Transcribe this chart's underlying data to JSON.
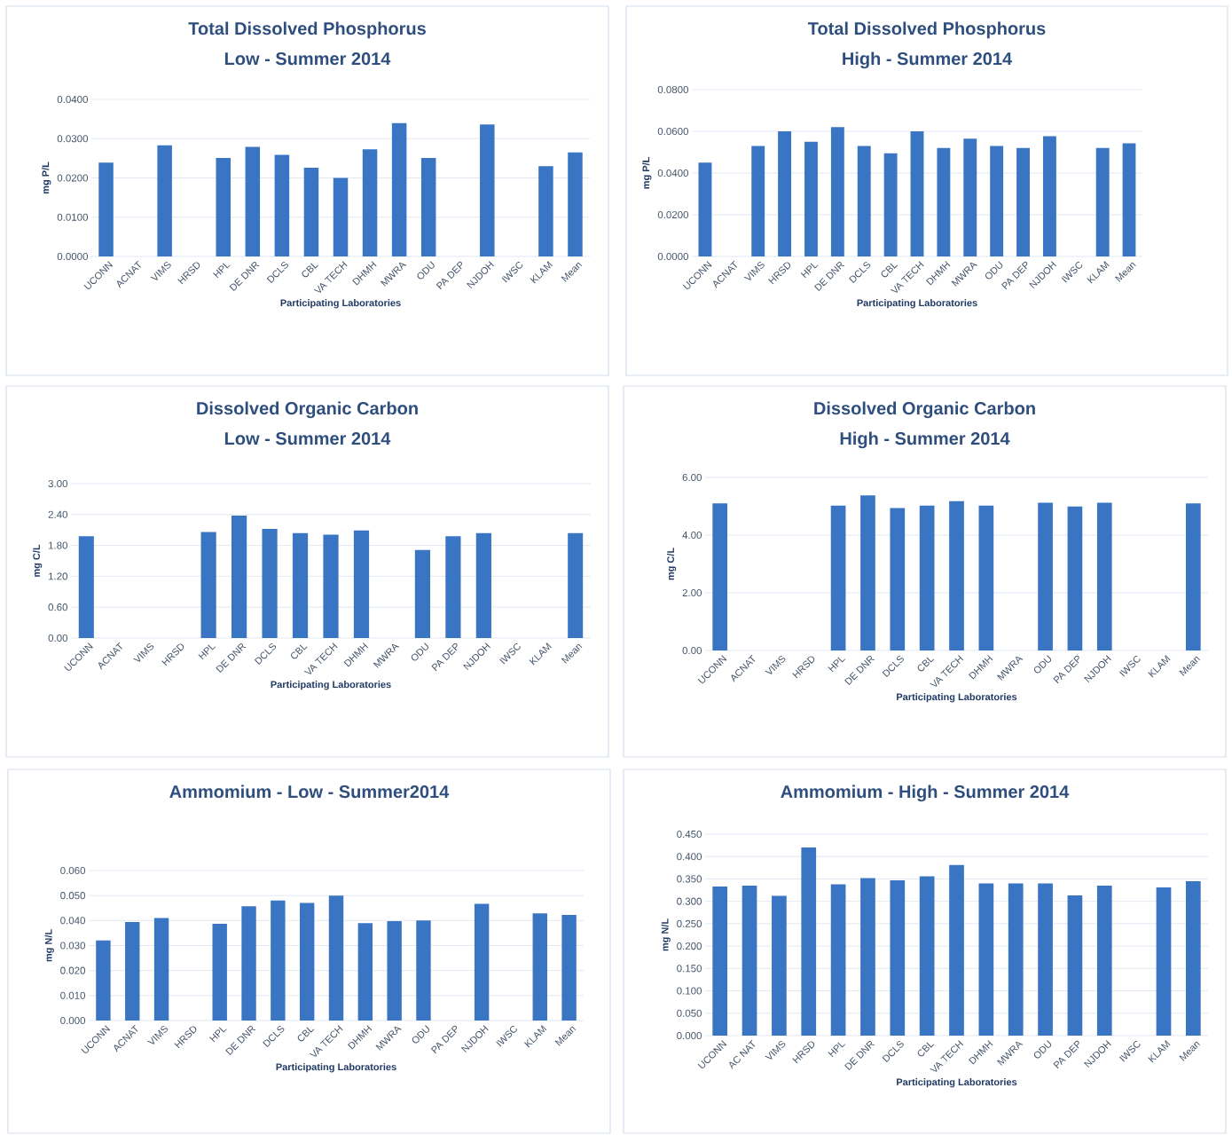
{
  "chart_data": [
    {
      "type": "bar",
      "title": "Total Dissolved Phosphorus",
      "subtitle": "Low - Summer 2014",
      "xlabel": "Participating Laboratories",
      "ylabel": "mg P/L",
      "color": "#3a75c4",
      "grid": "y",
      "categories": [
        "UCONN",
        "ACNAT",
        "VIMS",
        "HRSD",
        "HPL",
        "DE DNR",
        "DCLS",
        "CBL",
        "VA TECH",
        "DHMH",
        "MWRA",
        "ODU",
        "PA DEP",
        "NJDOH",
        "IWSC",
        "KLAM",
        "Mean"
      ],
      "values": [
        0.0239,
        null,
        0.0283,
        null,
        0.0251,
        0.0279,
        0.0259,
        0.0226,
        0.02,
        0.0273,
        0.034,
        0.0251,
        null,
        0.0336,
        null,
        0.023,
        0.0265
      ],
      "ylim": [
        0,
        0.04
      ],
      "yticks": [
        {
          "value": 0,
          "label": "0.0000"
        },
        {
          "value": 0.01,
          "label": "0.0100"
        },
        {
          "value": 0.02,
          "label": "0.0200"
        },
        {
          "value": 0.03,
          "label": "0.0300"
        },
        {
          "value": 0.04,
          "label": "0.0400"
        }
      ]
    },
    {
      "type": "bar",
      "title": "Total Dissolved Phosphorus",
      "subtitle": "High - Summer 2014",
      "xlabel": "Participating Laboratories",
      "ylabel": "mg P/L",
      "color": "#3a75c4",
      "grid": "y",
      "categories": [
        "UCONN",
        "ACNAT",
        "VIMS",
        "HRSD",
        "HPL",
        "DE DNR",
        "DCLS",
        "CBL",
        "VA TECH",
        "DHMH",
        "MWRA",
        "ODU",
        "PA DEP",
        "NJDOH",
        "IWSC",
        "KLAM",
        "Mean"
      ],
      "values": [
        0.045,
        null,
        0.053,
        0.06,
        0.055,
        0.062,
        0.053,
        0.0495,
        0.06,
        0.052,
        0.0565,
        0.053,
        0.052,
        0.0577,
        null,
        0.052,
        0.0542
      ],
      "ylim": [
        0,
        0.08
      ],
      "yticks": [
        {
          "value": 0,
          "label": "0.0000"
        },
        {
          "value": 0.02,
          "label": "0.0200"
        },
        {
          "value": 0.04,
          "label": "0.0400"
        },
        {
          "value": 0.06,
          "label": "0.0600"
        },
        {
          "value": 0.08,
          "label": "0.0800"
        }
      ]
    },
    {
      "type": "bar",
      "title": "Dissolved Organic Carbon",
      "subtitle": "Low - Summer 2014",
      "xlabel": "Participating Laboratories",
      "ylabel": "mg C/L",
      "color": "#3a75c4",
      "grid": "y",
      "categories": [
        "UCONN",
        "ACNAT",
        "VIMS",
        "HRSD",
        "HPL",
        "DE DNR",
        "DCLS",
        "CBL",
        "VA TECH",
        "DHMH",
        "MWRA",
        "ODU",
        "PA DEP",
        "NJDOH",
        "IWSC",
        "KLAM",
        "Mean"
      ],
      "values": [
        1.98,
        null,
        null,
        null,
        2.06,
        2.38,
        2.12,
        2.04,
        2.01,
        2.09,
        null,
        1.71,
        1.98,
        2.04,
        null,
        null,
        2.04
      ],
      "ylim": [
        0,
        3
      ],
      "yticks": [
        {
          "value": 0,
          "label": "0.00"
        },
        {
          "value": 0.6,
          "label": "0.60"
        },
        {
          "value": 1.2,
          "label": "1.20"
        },
        {
          "value": 1.8,
          "label": "1.80"
        },
        {
          "value": 2.4,
          "label": "2.40"
        },
        {
          "value": 3,
          "label": "3.00"
        }
      ]
    },
    {
      "type": "bar",
      "title": "Dissolved Organic Carbon",
      "subtitle": "High - Summer 2014",
      "xlabel": "Participating Laboratories",
      "ylabel": "mg C/L",
      "color": "#3a75c4",
      "grid": "y",
      "categories": [
        "UCONN",
        "ACNAT",
        "VIMS",
        "HRSD",
        "HPL",
        "DE DNR",
        "DCLS",
        "CBL",
        "VA TECH",
        "DHMH",
        "MWRA",
        "ODU",
        "PA DEP",
        "NJDOH",
        "IWSC",
        "KLAM",
        "Mean"
      ],
      "values": [
        5.1,
        null,
        null,
        null,
        5.02,
        5.38,
        4.94,
        5.02,
        5.18,
        5.02,
        null,
        5.12,
        4.99,
        5.12,
        null,
        null,
        5.1
      ],
      "ylim": [
        0,
        6
      ],
      "yticks": [
        {
          "value": 0,
          "label": "0.00"
        },
        {
          "value": 2,
          "label": "2.00"
        },
        {
          "value": 4,
          "label": "4.00"
        },
        {
          "value": 6,
          "label": "6.00"
        }
      ]
    },
    {
      "type": "bar",
      "title": "Ammomium -  Low - Summer2014",
      "xlabel": "Participating Laboratories",
      "ylabel": "mg N/L",
      "color": "#3a75c4",
      "grid": "y",
      "categories": [
        "UCONN",
        "ACNAT",
        "VIMS",
        "HRSD",
        "HPL",
        "DE DNR",
        "DCLS",
        "CBL",
        "VA TECH",
        "DHMH",
        "MWRA",
        "ODU",
        "PA DEP",
        "NJDOH",
        "IWSC",
        "KLAM",
        "Mean"
      ],
      "values": [
        0.032,
        0.0394,
        0.041,
        null,
        0.0387,
        0.0457,
        0.048,
        0.047,
        0.05,
        0.039,
        0.0398,
        0.04,
        null,
        0.0467,
        null,
        0.0429,
        0.0422
      ],
      "ylim": [
        0,
        0.06
      ],
      "yticks": [
        {
          "value": 0,
          "label": "0.000"
        },
        {
          "value": 0.01,
          "label": "0.010"
        },
        {
          "value": 0.02,
          "label": "0.020"
        },
        {
          "value": 0.03,
          "label": "0.030"
        },
        {
          "value": 0.04,
          "label": "0.040"
        },
        {
          "value": 0.05,
          "label": "0.050"
        },
        {
          "value": 0.06,
          "label": "0.060"
        }
      ]
    },
    {
      "type": "bar",
      "title": "Ammomium - High - Summer 2014",
      "xlabel": "Participating Laboratories",
      "ylabel": "mg N/L",
      "color": "#3a75c4",
      "grid": "y",
      "categories": [
        "UCONN",
        "AC NAT",
        "VIMS",
        "HRSD",
        "HPL",
        "DE DNR",
        "DCLS",
        "CBL",
        "VA TECH",
        "DHMH",
        "MWRA",
        "ODU",
        "PA DEP",
        "NJDOH",
        "IWSC",
        "KLAM",
        "Mean"
      ],
      "values": [
        0.333,
        0.335,
        0.312,
        0.42,
        0.338,
        0.352,
        0.347,
        0.356,
        0.381,
        0.34,
        0.34,
        0.34,
        0.313,
        0.335,
        null,
        0.331,
        0.345
      ],
      "ylim": [
        0,
        0.45
      ],
      "yticks": [
        {
          "value": 0,
          "label": "0.000"
        },
        {
          "value": 0.05,
          "label": "0.050"
        },
        {
          "value": 0.1,
          "label": "0.100"
        },
        {
          "value": 0.15,
          "label": "0.150"
        },
        {
          "value": 0.2,
          "label": "0.200"
        },
        {
          "value": 0.25,
          "label": "0.250"
        },
        {
          "value": 0.3,
          "label": "0.300"
        },
        {
          "value": 0.35,
          "label": "0.350"
        },
        {
          "value": 0.4,
          "label": "0.400"
        },
        {
          "value": 0.45,
          "label": "0.450"
        }
      ]
    }
  ]
}
